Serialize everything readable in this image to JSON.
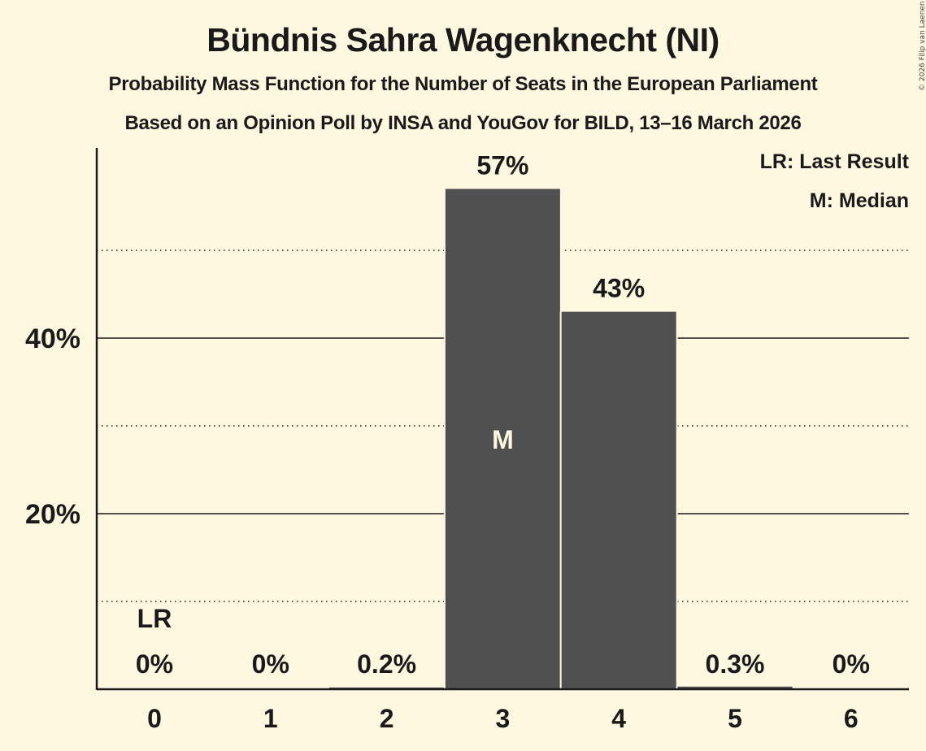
{
  "header": {
    "title": "Bündnis Sahra Wagenknecht (NI)",
    "subtitle1": "Probability Mass Function for the Number of Seats in the European Parliament",
    "subtitle2": "Based on an Opinion Poll by INSA and YouGov for BILD, 13–16 March 2026",
    "copyright": "© 2026 Filip van Laenen"
  },
  "legend": {
    "lr": "LR: Last Result",
    "m": "M: Median"
  },
  "colors": {
    "background": "#fff8e1",
    "bar": "#505050",
    "text": "#1a1a1a",
    "median_text": "#fff8e1"
  },
  "chart_data": {
    "type": "bar",
    "title": "Bündnis Sahra Wagenknecht (NI)",
    "subtitle": "Probability Mass Function for the Number of Seats in the European Parliament",
    "xlabel": "",
    "ylabel": "",
    "categories": [
      "0",
      "1",
      "2",
      "3",
      "4",
      "5",
      "6"
    ],
    "values": [
      0,
      0,
      0.2,
      57,
      43,
      0.3,
      0
    ],
    "value_labels": [
      "0%",
      "0%",
      "0.2%",
      "57%",
      "43%",
      "0.3%",
      "0%"
    ],
    "ylim": [
      0,
      60
    ],
    "y_ticks": [
      20,
      40
    ],
    "y_tick_labels": [
      "20%",
      "40%"
    ],
    "minor_gridlines": [
      10,
      30,
      50
    ],
    "grid": true,
    "legend_position": "top-right",
    "annotations": [
      {
        "category": "0",
        "text": "LR",
        "meaning": "Last Result"
      },
      {
        "category": "3",
        "text": "M",
        "meaning": "Median"
      }
    ]
  }
}
